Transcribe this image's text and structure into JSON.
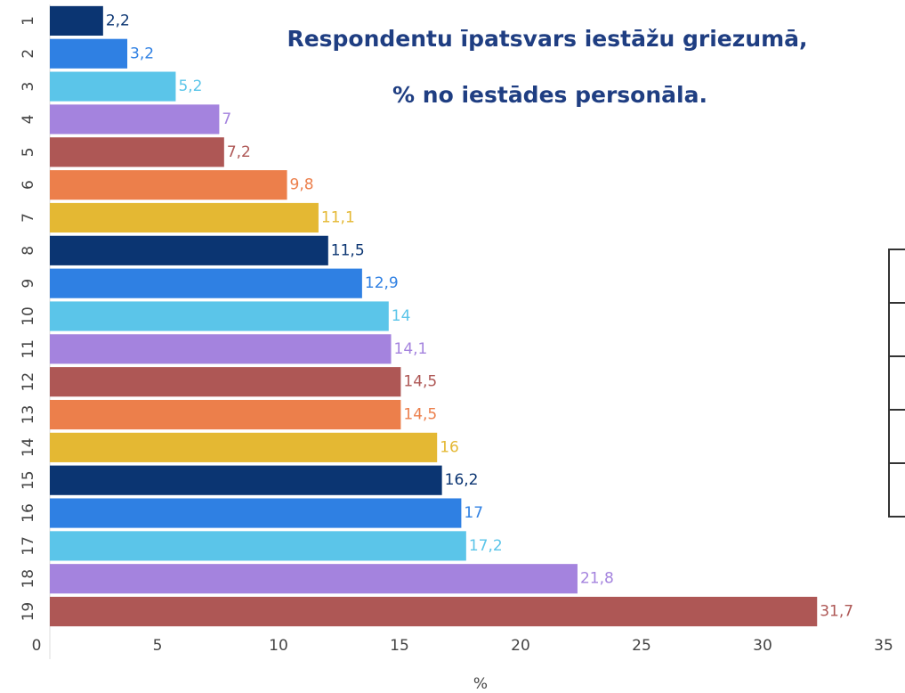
{
  "chart_data": {
    "type": "bar",
    "title": [
      "Respondentu īpatsvars iestāžu griezumā,",
      "% no iestādes personāla."
    ],
    "x_label": "%",
    "categories": [
      "1",
      "2",
      "3",
      "4",
      "5",
      "6",
      "7",
      "8",
      "9",
      "10",
      "11",
      "12",
      "13",
      "14",
      "15",
      "16",
      "17",
      "18",
      "19"
    ],
    "values": [
      2.2,
      3.2,
      5.2,
      7,
      7.2,
      9.8,
      11.1,
      11.5,
      12.9,
      14,
      14.1,
      14.5,
      14.5,
      16,
      16.2,
      17,
      17.2,
      21.8,
      31.7
    ],
    "value_labels": [
      "2,2",
      "3,2",
      "5,2",
      "7",
      "7,2",
      "9,8",
      "11,1",
      "11,5",
      "12,9",
      "14",
      "14,1",
      "14,5",
      "14,5",
      "16",
      "16,2",
      "17",
      "17,2",
      "21,8",
      "31,7"
    ],
    "colors": [
      "#0b3572",
      "#2f80e3",
      "#5bc5e9",
      "#a483de",
      "#ae5755",
      "#ec7f4b",
      "#e4b833",
      "#0b3572",
      "#2f80e3",
      "#5bc5e9",
      "#a483de",
      "#ae5755",
      "#ec7f4b",
      "#e4b833",
      "#0b3572",
      "#2f80e3",
      "#5bc5e9",
      "#a483de",
      "#ae5755"
    ],
    "xlim": [
      0,
      35
    ],
    "xticks": [
      0,
      5,
      10,
      15,
      20,
      25,
      30,
      35
    ]
  }
}
